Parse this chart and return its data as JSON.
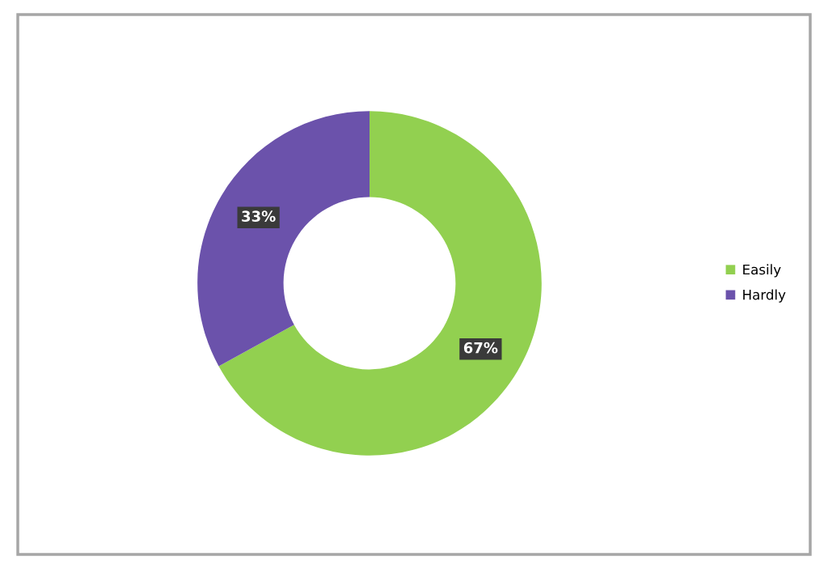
{
  "chart_data": {
    "type": "donut",
    "categories": [
      "Easily",
      "Hardly"
    ],
    "values": [
      67,
      33
    ],
    "colors": [
      "#92d050",
      "#6b52ab"
    ],
    "value_labels": [
      "67%",
      "33%"
    ],
    "legend": "right"
  }
}
